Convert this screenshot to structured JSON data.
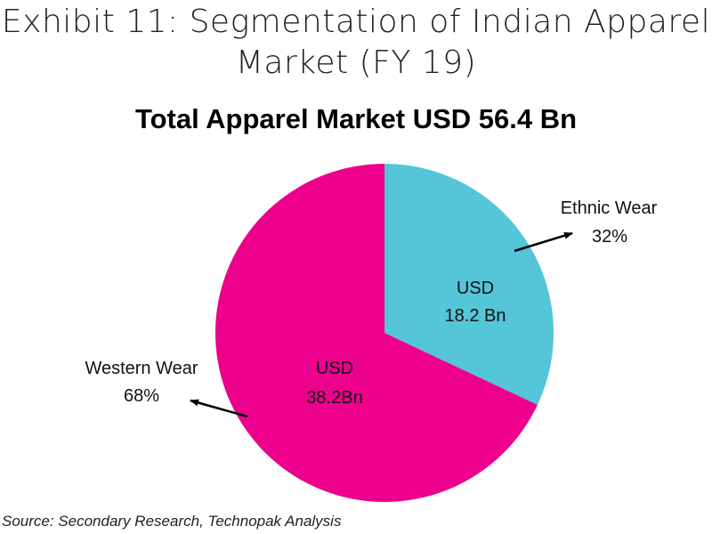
{
  "exhibit": {
    "title_line1": "Exhibit 11: Segmentation of Indian Apparel",
    "title_line2": "Market (FY 19)"
  },
  "chart_data": {
    "type": "pie",
    "title": "Total Apparel Market USD 56.4 Bn",
    "slices": [
      {
        "name": "Ethnic Wear",
        "percent": 32,
        "percent_label": "32%",
        "value_usd_bn": 18.2,
        "inner_label_1": "USD",
        "inner_label_2": "18.2 Bn",
        "color": "#55c5d8"
      },
      {
        "name": "Western Wear",
        "percent": 68,
        "percent_label": "68%",
        "value_usd_bn": 38.2,
        "inner_label_1": "USD",
        "inner_label_2": "38.2Bn",
        "color": "#ec008c"
      }
    ]
  },
  "source": "Source: Secondary Research, Technopak Analysis"
}
